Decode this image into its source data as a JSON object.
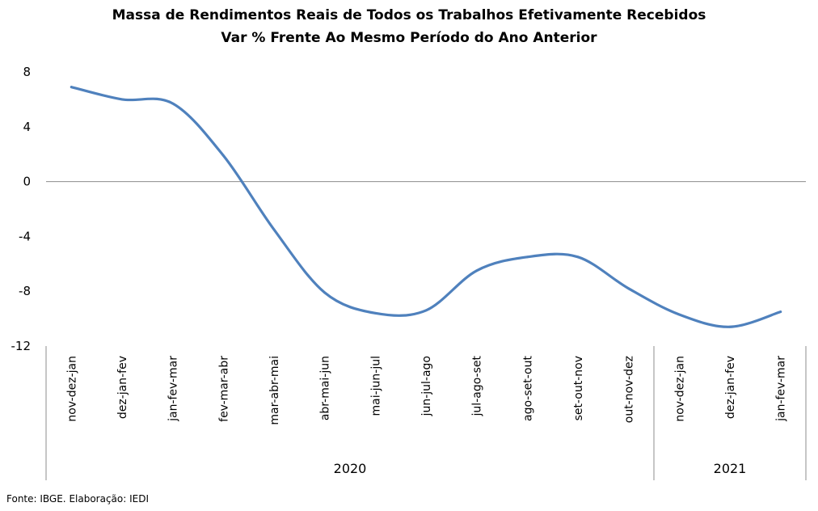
{
  "title": "Massa de Rendimentos Reais de Todos os Trabalhos Efetivamente Recebidos",
  "subtitle": "Var % Frente Ao Mesmo Período do Ano Anterior",
  "source": "Fonte: IBGE. Elaboração: IEDI",
  "chart_data": {
    "type": "line",
    "categories": [
      "nov-dez-jan",
      "dez-jan-fev",
      "jan-fev-mar",
      "fev-mar-abr",
      "mar-abr-mai",
      "abr-mai-jun",
      "mai-jun-jul",
      "jun-jul-ago",
      "jul-ago-set",
      "ago-set-out",
      "set-out-nov",
      "out-nov-dez",
      "nov-dez-jan",
      "dez-jan-fev",
      "jan-fev-mar"
    ],
    "groups": [
      {
        "label": "2020",
        "count": 12
      },
      {
        "label": "2021",
        "count": 3
      }
    ],
    "series": [
      {
        "values": [
          6.9,
          6.0,
          5.7,
          1.9,
          -3.5,
          -8.1,
          -9.6,
          -9.4,
          -6.5,
          -5.5,
          -5.5,
          -7.8,
          -9.7,
          -10.6,
          -9.5
        ],
        "color": "#4f81bd"
      }
    ],
    "yticks": [
      8,
      4,
      0,
      -4,
      -8,
      -12
    ],
    "ylim": [
      -12,
      8
    ],
    "grid": false,
    "smooth": true
  }
}
